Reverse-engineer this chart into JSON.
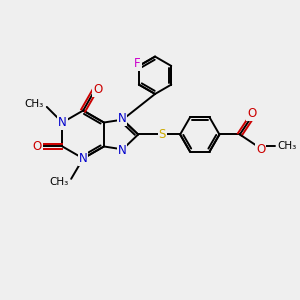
{
  "background_color": "#efefef",
  "bond_color": "#000000",
  "N_color": "#0000cc",
  "O_color": "#cc0000",
  "S_color": "#ccaa00",
  "F_color": "#cc00cc",
  "line_width": 1.4,
  "figsize": [
    3.0,
    3.0
  ],
  "dpi": 100,
  "xlim": [
    0,
    10
  ],
  "ylim": [
    0,
    10
  ]
}
